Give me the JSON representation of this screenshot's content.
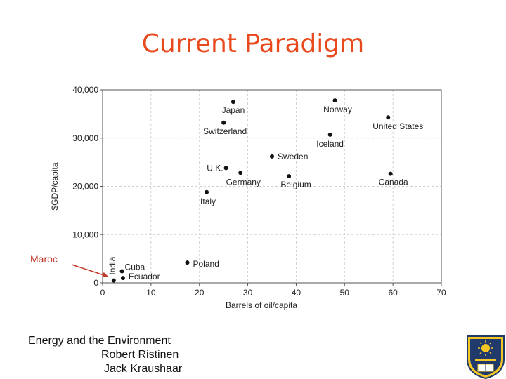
{
  "slide": {
    "title": "Current Paradigm",
    "callout": "Maroc",
    "footer": {
      "line1": "Energy and the Environment",
      "line2": "Robert Ristinen",
      "line3": "Jack Kraushaar"
    },
    "logo_icon": "university-seal-icon",
    "title_color": "#e8491d",
    "arrow_color": "#c0392b"
  },
  "chart_data": {
    "type": "scatter",
    "xlabel": "Barrels of oil/capita",
    "ylabel": "$GDP/capita",
    "xlim": [
      0,
      70
    ],
    "ylim": [
      0,
      40000
    ],
    "xticks": [
      0,
      10,
      20,
      30,
      40,
      50,
      60,
      70
    ],
    "yticks": [
      0,
      10000,
      20000,
      30000,
      40000
    ],
    "ytick_labels": [
      "0",
      "10,000",
      "20,000",
      "30,000",
      "40,000"
    ],
    "grid": true,
    "points": [
      {
        "label": "Japan",
        "x": 27,
        "y": 37500
      },
      {
        "label": "Norway",
        "x": 48,
        "y": 37800
      },
      {
        "label": "Switzerland",
        "x": 25,
        "y": 33200
      },
      {
        "label": "United States",
        "x": 59,
        "y": 34300
      },
      {
        "label": "Iceland",
        "x": 47,
        "y": 30700
      },
      {
        "label": "Sweden",
        "x": 35,
        "y": 26200
      },
      {
        "label": "U.K.",
        "x": 25.5,
        "y": 23800
      },
      {
        "label": "Germany",
        "x": 28.5,
        "y": 22800
      },
      {
        "label": "Belgium",
        "x": 38.5,
        "y": 22100
      },
      {
        "label": "Canada",
        "x": 59.5,
        "y": 22600
      },
      {
        "label": "Italy",
        "x": 21.5,
        "y": 18800
      },
      {
        "label": "Poland",
        "x": 17.5,
        "y": 4200
      },
      {
        "label": "Cuba",
        "x": 4,
        "y": 2400
      },
      {
        "label": "India",
        "x": 2.3,
        "y": 500
      },
      {
        "label": "Ecuador",
        "x": 4.2,
        "y": 1000
      }
    ]
  }
}
